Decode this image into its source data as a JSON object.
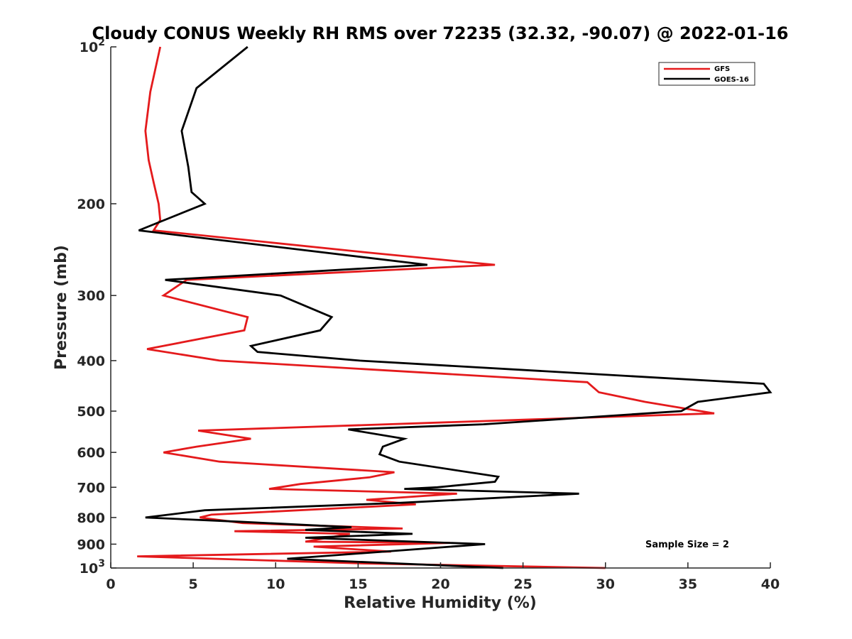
{
  "chart_data": {
    "type": "line",
    "title": "Cloudy CONUS Weekly RH RMS over 72235 (32.32, -90.07) @ 2022-01-16",
    "xlabel": "Relative Humidity (%)",
    "ylabel": "Pressure (mb)",
    "xlim": [
      0,
      40
    ],
    "ylim": [
      100,
      1000
    ],
    "yscale": "log",
    "y_reversed": true,
    "grid": false,
    "legend_position": "top-right",
    "x_ticks": [
      {
        "value": 0,
        "label": "0"
      },
      {
        "value": 5,
        "label": "5"
      },
      {
        "value": 10,
        "label": "10"
      },
      {
        "value": 15,
        "label": "15"
      },
      {
        "value": 20,
        "label": "20"
      },
      {
        "value": 25,
        "label": "25"
      },
      {
        "value": 30,
        "label": "30"
      },
      {
        "value": 35,
        "label": "35"
      },
      {
        "value": 40,
        "label": "40"
      }
    ],
    "y_ticks": [
      {
        "value": 100,
        "label": "10",
        "sup": "2"
      },
      {
        "value": 200,
        "label": "200"
      },
      {
        "value": 300,
        "label": "300"
      },
      {
        "value": 400,
        "label": "400"
      },
      {
        "value": 500,
        "label": "500"
      },
      {
        "value": 600,
        "label": "600"
      },
      {
        "value": 700,
        "label": "700"
      },
      {
        "value": 800,
        "label": "800"
      },
      {
        "value": 900,
        "label": "900"
      },
      {
        "value": 1000,
        "label": "10",
        "sup": "3"
      }
    ],
    "series": [
      {
        "name": "GFS",
        "color": "#e41a1c",
        "x": [
          3.0,
          2.4,
          2.1,
          2.3,
          2.6,
          2.9,
          3.0,
          2.6,
          15.5,
          23.3,
          4.6,
          3.2,
          8.3,
          8.1,
          2.2,
          6.6,
          28.9,
          29.6,
          32.4,
          36.6,
          5.3,
          8.5,
          5.2,
          3.2,
          6.6,
          17.2,
          15.7,
          11.5,
          9.6,
          21.0,
          15.5,
          18.5,
          6.1,
          5.4,
          8.0,
          17.7,
          7.5,
          14.5,
          11.8,
          20.6,
          12.3,
          17.0,
          1.6,
          15.4,
          30.0
        ],
        "y": [
          100,
          122,
          145,
          165,
          182,
          200,
          215,
          225,
          248,
          262,
          280,
          300,
          330,
          350,
          380,
          400,
          440,
          460,
          480,
          505,
          545,
          565,
          585,
          600,
          625,
          655,
          670,
          690,
          705,
          720,
          740,
          755,
          790,
          800,
          820,
          840,
          850,
          860,
          890,
          895,
          910,
          930,
          950,
          980,
          1000
        ]
      },
      {
        "name": "GOES-16",
        "color": "#000000",
        "x": [
          8.3,
          5.2,
          4.3,
          4.7,
          4.9,
          5.7,
          1.7,
          19.2,
          3.3,
          10.3,
          13.4,
          12.7,
          8.5,
          8.9,
          15.1,
          39.6,
          40.0,
          35.6,
          34.6,
          22.6,
          14.4,
          17.8,
          16.5,
          16.3,
          17.5,
          23.5,
          23.3,
          19.8,
          17.8,
          28.4,
          17.5,
          5.7,
          2.1,
          7.8,
          14.6,
          11.8,
          18.3,
          11.8,
          16.2,
          22.7,
          10.7,
          23.8
        ],
        "y": [
          100,
          120,
          145,
          170,
          190,
          200,
          225,
          262,
          280,
          300,
          330,
          350,
          375,
          385,
          400,
          443,
          460,
          480,
          500,
          530,
          542,
          565,
          585,
          605,
          625,
          668,
          683,
          700,
          705,
          720,
          750,
          775,
          800,
          815,
          835,
          845,
          860,
          875,
          885,
          900,
          960,
          1000
        ]
      }
    ],
    "annotations": [
      {
        "text": "Sample Size = 2"
      }
    ]
  }
}
